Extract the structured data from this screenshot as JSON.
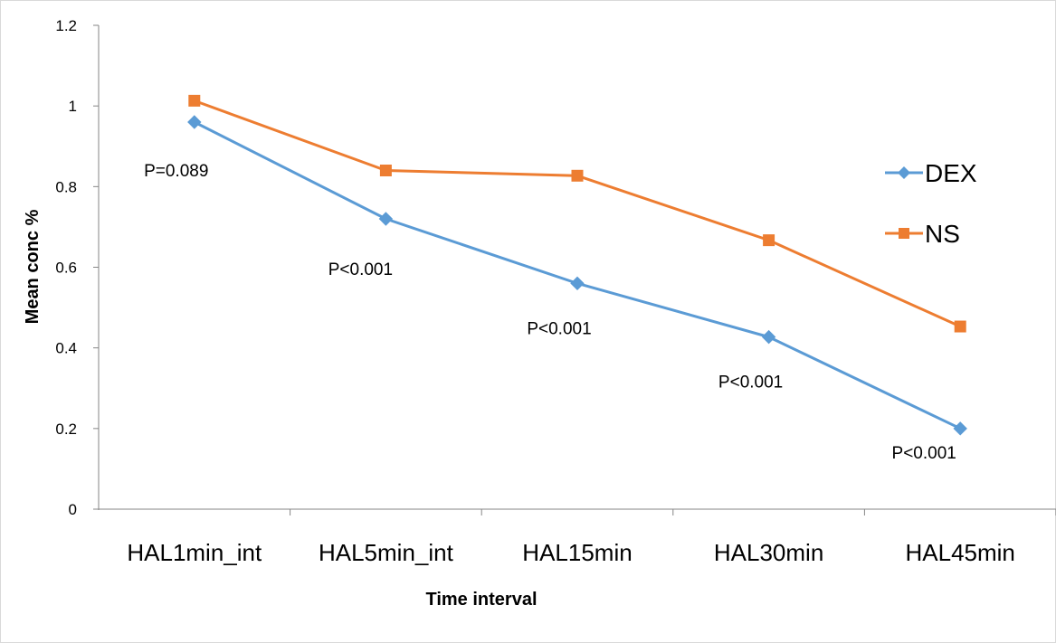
{
  "chart_data": {
    "type": "line",
    "title": "",
    "xlabel": "Time interval",
    "ylabel": "Mean conc %",
    "ylim": [
      0,
      1.2
    ],
    "yticks": [
      "0",
      "0.2",
      "0.4",
      "0.6",
      "0.8",
      "1",
      "1.2"
    ],
    "categories": [
      "HAL1min_int",
      "HAL5min_int",
      "HAL15min",
      "HAL30min",
      "HAL45min"
    ],
    "series": [
      {
        "name": "DEX",
        "color": "#5B9BD5",
        "marker": "diamond",
        "values": [
          0.96,
          0.72,
          0.56,
          0.427,
          0.2
        ]
      },
      {
        "name": "NS",
        "color": "#ED7D31",
        "marker": "square",
        "values": [
          1.013,
          0.84,
          0.827,
          0.667,
          0.453
        ]
      }
    ],
    "annotations": [
      "P=0.089",
      "P<0.001",
      "P<0.001",
      "P<0.001",
      "P<0.001"
    ],
    "legend_position": "right",
    "grid": false
  }
}
